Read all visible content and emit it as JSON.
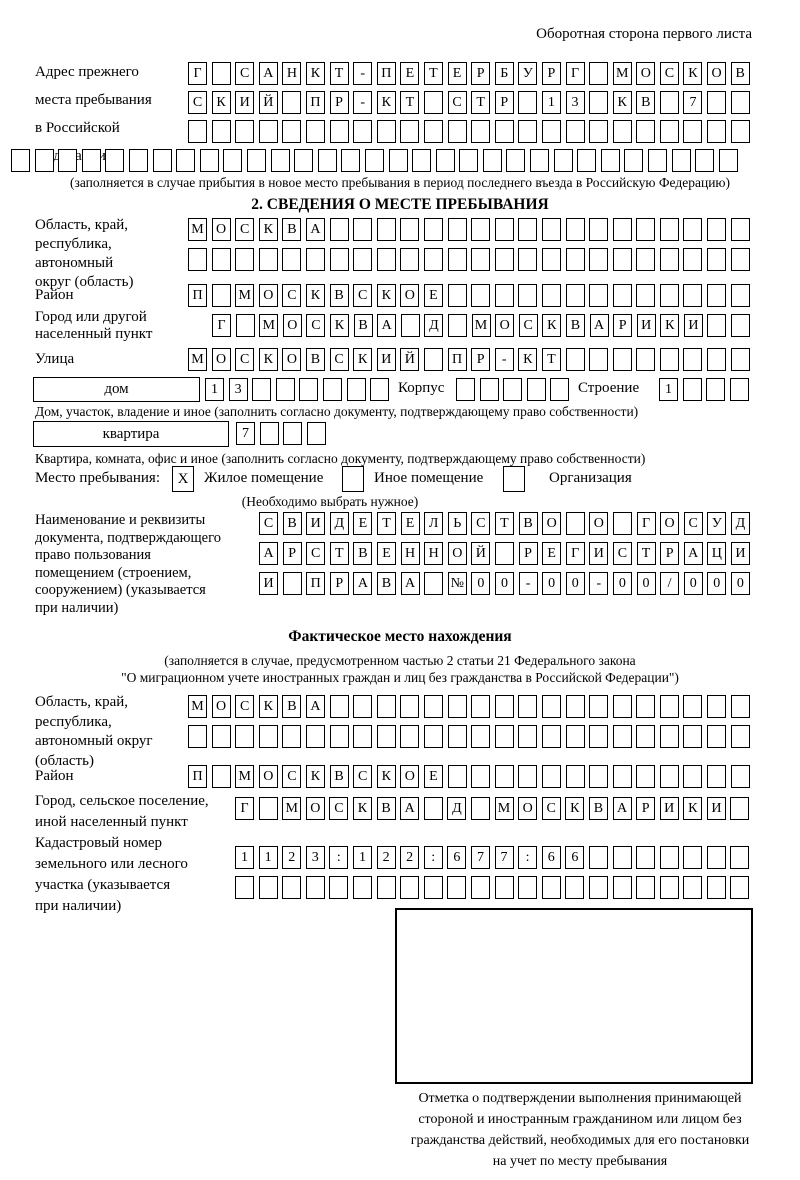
{
  "header": {
    "note": "Оборотная сторона первого листа"
  },
  "prev_address": {
    "label_lines": [
      "Адрес прежнего",
      "места пребывания",
      "в Российской",
      "Федерации"
    ],
    "rows": [
      {
        "len": 24,
        "text": "Г САНКТ-ПЕТЕРБУРГ МОСКОВ"
      },
      {
        "len": 24,
        "text": "СКИЙ ПР-КТ СТР 13 КВ 7"
      },
      {
        "len": 24,
        "text": ""
      },
      {
        "len": 31,
        "text": ""
      }
    ],
    "caption": "(заполняется в случае прибытия в новое место пребывания в период последнего въезда в Российскую Федерацию)"
  },
  "section2": {
    "title": "2. СВЕДЕНИЯ О МЕСТЕ ПРЕБЫВАНИЯ",
    "region": {
      "label_lines": [
        "Область, край,",
        "республика,",
        "автономный",
        "округ (область)"
      ],
      "rows": [
        {
          "len": 24,
          "text": "МОСКВА"
        },
        {
          "len": 24,
          "text": ""
        }
      ]
    },
    "district": {
      "label": "Район",
      "row": {
        "len": 24,
        "text": "П МОСКВСКОЕ"
      }
    },
    "city": {
      "label_lines": [
        "Город или другой",
        "населенный пункт"
      ],
      "row": {
        "len": 23,
        "text": "Г МОСКВА Д МОСКВАРИКИ"
      }
    },
    "street": {
      "label": "Улица",
      "row": {
        "len": 24,
        "text": "МОСКОВСКИЙ ПР-КТ"
      }
    },
    "house": {
      "box_label": "дом",
      "house_row": {
        "len": 8,
        "text": "13"
      },
      "korpus_label": "Корпус",
      "korpus_row": {
        "len": 5,
        "text": ""
      },
      "stroenie_label": "Строение",
      "stroenie_row": {
        "len": 4,
        "text": "1"
      },
      "caption": "Дом, участок, владение и иное (заполнить согласно документу, подтверждающему право собственности)"
    },
    "apartment": {
      "box_label": "квартира",
      "row": {
        "len": 4,
        "text": "7"
      },
      "caption": "Квартира, комната, офис и иное (заполнить согласно документу, подтверждающему право собственности)"
    },
    "stay_type": {
      "label": "Место пребывания:",
      "options": [
        {
          "label": "Жилое помещение",
          "mark": "X"
        },
        {
          "label": "Иное помещение",
          "mark": ""
        },
        {
          "label": "Организация",
          "mark": ""
        }
      ],
      "caption": "(Необходимо выбрать нужное)"
    },
    "document": {
      "label_lines": [
        "Наименование и реквизиты",
        "документа, подтверждающего",
        "право пользования",
        "помещением (строением,",
        "сооружением) (указывается",
        "при наличии)"
      ],
      "rows": [
        {
          "len": 21,
          "text": "СВИДЕТЕЛЬСТВО О ГОСУД"
        },
        {
          "len": 21,
          "text": "АРСТВЕННОЙ РЕГИСТРАЦИ"
        },
        {
          "len": 21,
          "text": "И ПРАВА №00-00-00/000"
        }
      ]
    }
  },
  "actual_location": {
    "title": "Фактическое место нахождения",
    "caption_lines": [
      "(заполняется в случае, предусмотренном частью 2 статьи 21 Федерального закона",
      "\"О миграционном учете иностранных граждан и лиц без гражданства в Российской Федерации\")"
    ],
    "region": {
      "label_lines": [
        "Область, край,",
        "республика,",
        "автономный округ",
        "(область)"
      ],
      "rows": [
        {
          "len": 24,
          "text": "МОСКВА"
        },
        {
          "len": 24,
          "text": ""
        }
      ]
    },
    "district": {
      "label": "Район",
      "row": {
        "len": 24,
        "text": "П МОСКВСКОЕ"
      }
    },
    "city": {
      "label_lines": [
        "Город, сельское поселение,",
        "иной населенный пункт"
      ],
      "row": {
        "len": 22,
        "text": "Г МОСКВА Д МОСКВАРИКИ"
      }
    },
    "cadastral": {
      "label_lines": [
        "Кадастровый номер",
        "земельного или лесного",
        "участка (указывается",
        "при наличии)"
      ],
      "rows": [
        {
          "len": 22,
          "text": "1123:122:677:66"
        },
        {
          "len": 22,
          "text": ""
        }
      ]
    }
  },
  "stamp": {
    "caption_lines": [
      "Отметка о подтверждении выполнения принимающей",
      "стороной и иностранным гражданином или лицом без",
      "гражданства действий, необходимых для его постановки",
      "на учет по месту пребывания"
    ]
  }
}
